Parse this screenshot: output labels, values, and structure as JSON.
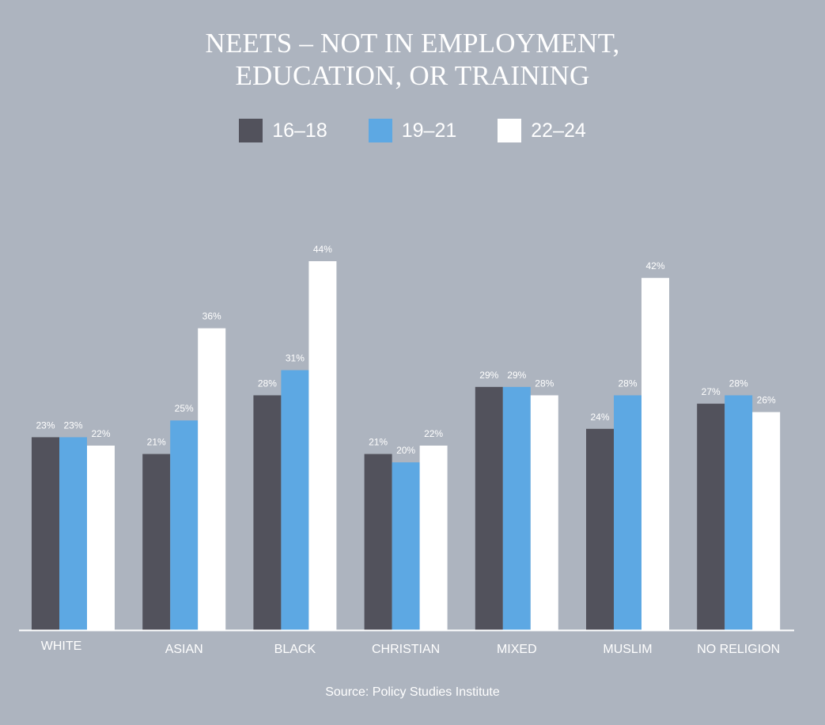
{
  "chart_data": {
    "type": "bar",
    "title_lines": [
      "NEETS – NOT IN EMPLOYMENT,",
      "EDUCATION, OR TRAINING"
    ],
    "categories": [
      "WHITE",
      "ASIAN",
      "BLACK",
      "CHRISTIAN",
      "MIXED",
      "MUSLIM",
      "NO RELIGION"
    ],
    "series": [
      {
        "name": "16–18",
        "color": "#52525c",
        "values": [
          23,
          21,
          28,
          21,
          29,
          24,
          27
        ]
      },
      {
        "name": "19–21",
        "color": "#5da8e3",
        "values": [
          23,
          25,
          31,
          20,
          29,
          28,
          28
        ]
      },
      {
        "name": "22–24",
        "color": "#ffffff",
        "values": [
          22,
          36,
          44,
          22,
          28,
          42,
          26
        ]
      }
    ],
    "value_suffix": "%",
    "xlabel": "",
    "ylabel": "",
    "ylim": [
      0,
      44
    ],
    "grid": false,
    "legend_position": "top-center",
    "source": "Source: Policy Studies Institute"
  }
}
